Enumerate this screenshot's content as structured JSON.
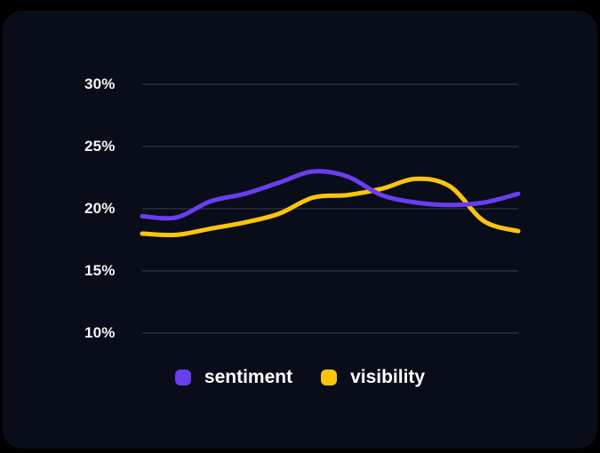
{
  "colors": {
    "outer_background": "#000000",
    "panel_background": "#090d19",
    "grid_line": "#2a2e3a",
    "tick_text": "#f4f5f7",
    "legend_text": "#ffffff"
  },
  "chart_data": {
    "type": "line",
    "title": "",
    "x": [
      1,
      2,
      3,
      4,
      5,
      6,
      7,
      8,
      9,
      10,
      11,
      12
    ],
    "x_axis_labels": [],
    "series": [
      {
        "name": "sentiment",
        "color": "#6a3df0",
        "values": [
          19.4,
          19.3,
          20.6,
          21.2,
          22.1,
          23.0,
          22.6,
          21.1,
          20.5,
          20.3,
          20.5,
          21.2
        ]
      },
      {
        "name": "visibility",
        "color": "#fcc40d",
        "values": [
          18.0,
          17.9,
          18.4,
          18.9,
          19.6,
          20.9,
          21.1,
          21.6,
          22.4,
          21.8,
          19.0,
          18.2
        ]
      }
    ],
    "y_ticks": [
      {
        "label": "30%",
        "value": 30
      },
      {
        "label": "25%",
        "value": 25
      },
      {
        "label": "20%",
        "value": 20
      },
      {
        "label": "15%",
        "value": 15
      },
      {
        "label": "10%",
        "value": 10
      }
    ],
    "ylim": [
      10,
      30
    ],
    "y_unit": "%",
    "grid": "horizontal",
    "legend_position": "bottom-center",
    "draw_order": [
      "visibility",
      "sentiment"
    ]
  }
}
